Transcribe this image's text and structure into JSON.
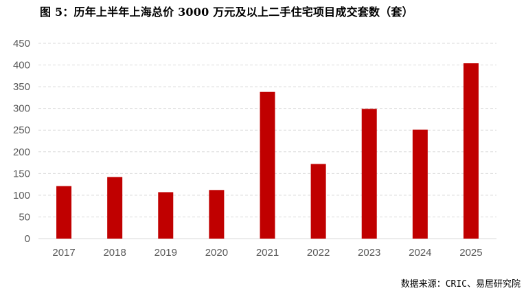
{
  "chart_data": {
    "type": "bar",
    "title": "图 5：历年上半年上海总价 3000 万元及以上二手住宅项目成交套数（套）",
    "categories": [
      "2017",
      "2018",
      "2019",
      "2020",
      "2021",
      "2022",
      "2023",
      "2024",
      "2025"
    ],
    "series": [
      {
        "values": [
          121,
          142,
          107,
          112,
          338,
          172,
          299,
          251,
          404
        ],
        "color": "#c00000"
      }
    ],
    "ylim": [
      0,
      450
    ],
    "yticks": [
      0,
      50,
      100,
      150,
      200,
      250,
      300,
      350,
      400,
      450
    ],
    "grid": true,
    "legend": "none",
    "source": "数据来源：CRIC、易居研究院"
  }
}
